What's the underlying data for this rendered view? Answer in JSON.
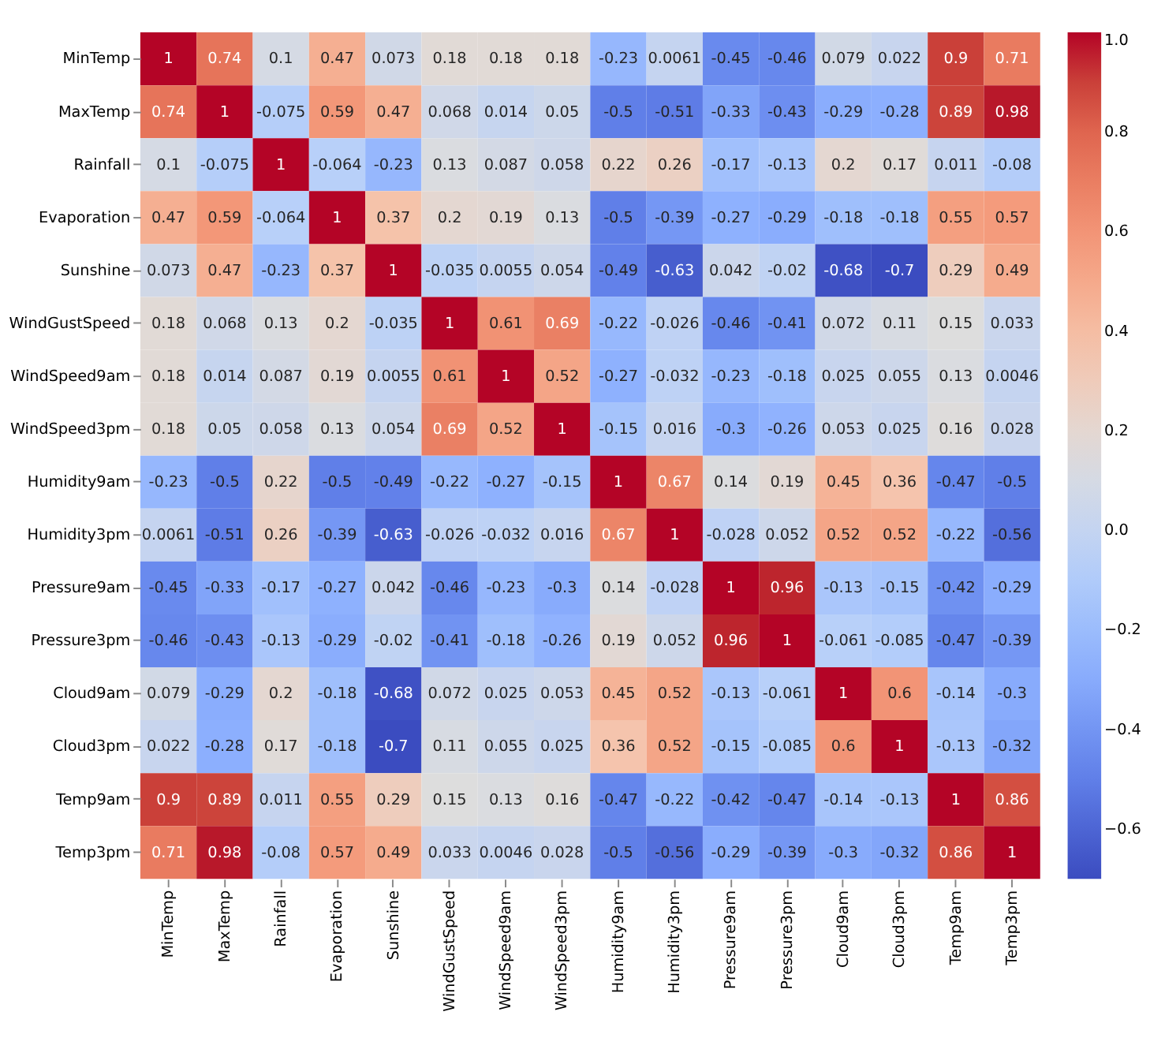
{
  "chart_data": {
    "type": "heatmap",
    "categories": [
      "MinTemp",
      "MaxTemp",
      "Rainfall",
      "Evaporation",
      "Sunshine",
      "WindGustSpeed",
      "WindSpeed9am",
      "WindSpeed3pm",
      "Humidity9am",
      "Humidity3pm",
      "Pressure9am",
      "Pressure3pm",
      "Cloud9am",
      "Cloud3pm",
      "Temp9am",
      "Temp3pm"
    ],
    "y_categories": [
      "MinTemp",
      "MaxTemp",
      "Rainfall",
      "Evaporation",
      "Sunshine",
      "WindGustSpeed",
      "WindSpeed9am",
      "WindSpeed3pm",
      "Humidity9am",
      "Humidity3pm",
      "Pressure9am",
      "Pressure3pm",
      "Cloud9am",
      "Cloud3pm",
      "Temp9am",
      "Temp3pm"
    ],
    "cells": [
      [
        1,
        0.74,
        0.1,
        0.47,
        0.073,
        0.18,
        0.18,
        0.18,
        -0.23,
        0.0061,
        -0.45,
        -0.46,
        0.079,
        0.022,
        0.9,
        0.71
      ],
      [
        0.74,
        1,
        -0.075,
        0.59,
        0.47,
        0.068,
        0.014,
        0.05,
        -0.5,
        -0.51,
        -0.33,
        -0.43,
        -0.29,
        -0.28,
        0.89,
        0.98
      ],
      [
        0.1,
        -0.075,
        1,
        -0.064,
        -0.23,
        0.13,
        0.087,
        0.058,
        0.22,
        0.26,
        -0.17,
        -0.13,
        0.2,
        0.17,
        0.011,
        -0.08
      ],
      [
        0.47,
        0.59,
        -0.064,
        1,
        0.37,
        0.2,
        0.19,
        0.13,
        -0.5,
        -0.39,
        -0.27,
        -0.29,
        -0.18,
        -0.18,
        0.55,
        0.57
      ],
      [
        0.073,
        0.47,
        -0.23,
        0.37,
        1,
        -0.035,
        0.0055,
        0.054,
        -0.49,
        -0.63,
        0.042,
        -0.02,
        -0.68,
        -0.7,
        0.29,
        0.49
      ],
      [
        0.18,
        0.068,
        0.13,
        0.2,
        -0.035,
        1,
        0.61,
        0.69,
        -0.22,
        -0.026,
        -0.46,
        -0.41,
        0.072,
        0.11,
        0.15,
        0.033
      ],
      [
        0.18,
        0.014,
        0.087,
        0.19,
        0.0055,
        0.61,
        1,
        0.52,
        -0.27,
        -0.032,
        -0.23,
        -0.18,
        0.025,
        0.055,
        0.13,
        0.0046
      ],
      [
        0.18,
        0.05,
        0.058,
        0.13,
        0.054,
        0.69,
        0.52,
        1,
        -0.15,
        0.016,
        -0.3,
        -0.26,
        0.053,
        0.025,
        0.16,
        0.028
      ],
      [
        -0.23,
        -0.5,
        0.22,
        -0.5,
        -0.49,
        -0.22,
        -0.27,
        -0.15,
        1,
        0.67,
        0.14,
        0.19,
        0.45,
        0.36,
        -0.47,
        -0.5
      ],
      [
        0.0061,
        -0.51,
        0.26,
        -0.39,
        -0.63,
        -0.026,
        -0.032,
        0.016,
        0.67,
        1,
        -0.028,
        0.052,
        0.52,
        0.52,
        -0.22,
        -0.56
      ],
      [
        -0.45,
        -0.33,
        -0.17,
        -0.27,
        0.042,
        -0.46,
        -0.23,
        -0.3,
        0.14,
        -0.028,
        1,
        0.96,
        -0.13,
        -0.15,
        -0.42,
        -0.29
      ],
      [
        -0.46,
        -0.43,
        -0.13,
        -0.29,
        -0.02,
        -0.41,
        -0.18,
        -0.26,
        0.19,
        0.052,
        0.96,
        1,
        -0.061,
        -0.085,
        -0.47,
        -0.39
      ],
      [
        0.079,
        -0.29,
        0.2,
        -0.18,
        -0.68,
        0.072,
        0.025,
        0.053,
        0.45,
        0.52,
        -0.13,
        -0.061,
        1,
        0.6,
        -0.14,
        -0.3
      ],
      [
        0.022,
        -0.28,
        0.17,
        -0.18,
        -0.7,
        0.11,
        0.055,
        0.025,
        0.36,
        0.52,
        -0.15,
        -0.085,
        0.6,
        1,
        -0.13,
        -0.32
      ],
      [
        0.9,
        0.89,
        0.011,
        0.55,
        0.29,
        0.15,
        0.13,
        0.16,
        -0.47,
        -0.22,
        -0.42,
        -0.47,
        -0.14,
        -0.13,
        1,
        0.86
      ],
      [
        0.71,
        0.98,
        -0.08,
        0.57,
        0.49,
        0.033,
        0.0046,
        0.028,
        -0.5,
        -0.56,
        -0.29,
        -0.39,
        -0.3,
        -0.32,
        0.86,
        1
      ]
    ],
    "data_labels": true,
    "clim": [
      -0.7,
      1.0
    ],
    "cticks": [
      -0.6,
      -0.4,
      -0.2,
      {
        "value": 0,
        "label": "0.0"
      },
      0.2,
      0.4,
      0.6,
      0.8,
      {
        "value": 1,
        "label": "1.0"
      }
    ]
  }
}
